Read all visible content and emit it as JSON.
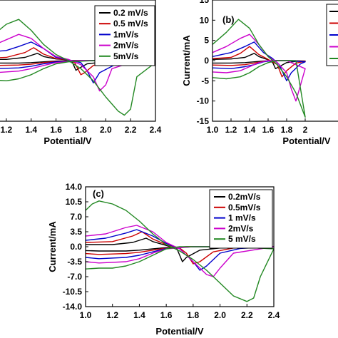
{
  "chart_data": [
    {
      "type": "line",
      "panel_label": "",
      "xlabel": "Potential/V",
      "ylabel": "",
      "xlim": [
        1.0,
        2.4
      ],
      "ylim": [
        -15,
        15
      ],
      "xticks": [
        "1.2",
        "1.4",
        "1.6",
        "1.8",
        "2.0",
        "2.2",
        "2.4"
      ],
      "yticks": [],
      "legend": {
        "position": "top-right",
        "entries": [
          "0.2 mV/s",
          "0.5 mV/s",
          "1mV/s",
          "2mV/s",
          "5mV/s"
        ]
      },
      "series": [
        {
          "name": "0.2 mV/s",
          "color": "#000000",
          "x": [
            1.0,
            1.2,
            1.35,
            1.45,
            1.5,
            1.6,
            1.7,
            1.73,
            1.76,
            1.78,
            1.85,
            2.0,
            2.4,
            2.0,
            1.72,
            1.6,
            1.5,
            1.4,
            1.3,
            1.1,
            1.0
          ],
          "y": [
            0.3,
            0.3,
            0.8,
            1.8,
            1.0,
            0.4,
            0.2,
            -0.3,
            -2.4,
            -2.0,
            -0.8,
            -0.3,
            0.0,
            0.0,
            0.0,
            -0.1,
            -0.3,
            -0.5,
            -0.6,
            -0.6,
            -0.6
          ]
        },
        {
          "name": "0.5 mV/s",
          "color": "#cc0000",
          "x": [
            1.0,
            1.2,
            1.35,
            1.42,
            1.5,
            1.6,
            1.7,
            1.75,
            1.8,
            1.83,
            1.9,
            2.0,
            2.4,
            2.0,
            1.75,
            1.6,
            1.5,
            1.4,
            1.3,
            1.1,
            1.0
          ],
          "y": [
            0.6,
            0.8,
            2.0,
            3.2,
            1.6,
            0.5,
            0.2,
            -0.5,
            -3.5,
            -3.0,
            -1.2,
            -0.4,
            0.0,
            0.0,
            0.0,
            -0.2,
            -0.5,
            -0.9,
            -1.1,
            -1.2,
            -1.1
          ]
        },
        {
          "name": "1mV/s",
          "color": "#0000cc",
          "x": [
            1.0,
            1.2,
            1.3,
            1.4,
            1.5,
            1.6,
            1.7,
            1.8,
            1.85,
            1.9,
            1.95,
            2.1,
            2.4,
            2.0,
            1.8,
            1.6,
            1.5,
            1.4,
            1.3,
            1.1,
            1.0
          ],
          "y": [
            2.0,
            2.5,
            3.5,
            4.6,
            3.0,
            0.8,
            0.2,
            -0.5,
            -2.5,
            -5.5,
            -3.0,
            -0.6,
            0.0,
            0.0,
            0.0,
            -0.3,
            -0.8,
            -1.4,
            -1.8,
            -2.0,
            -1.9
          ]
        },
        {
          "name": "2mV/s",
          "color": "#cc00cc",
          "x": [
            1.0,
            1.15,
            1.3,
            1.4,
            1.5,
            1.6,
            1.7,
            1.8,
            1.9,
            1.95,
            2.0,
            2.05,
            2.2,
            2.4,
            2.0,
            1.8,
            1.6,
            1.5,
            1.4,
            1.3,
            1.1,
            1.0
          ],
          "y": [
            3.0,
            4.5,
            6.5,
            5.5,
            3.0,
            1.0,
            0.3,
            -1.0,
            -4.0,
            -7.5,
            -6.0,
            -2.0,
            -0.5,
            0.0,
            0.0,
            0.0,
            -0.5,
            -1.2,
            -2.0,
            -2.6,
            -3.0,
            -2.8
          ]
        },
        {
          "name": "5mV/s",
          "color": "#228822",
          "x": [
            1.0,
            1.1,
            1.2,
            1.3,
            1.4,
            1.5,
            1.6,
            1.7,
            1.8,
            1.9,
            2.0,
            2.1,
            2.15,
            2.2,
            2.25,
            2.4,
            2.1,
            1.9,
            1.7,
            1.6,
            1.5,
            1.4,
            1.3,
            1.2,
            1.1,
            1.0
          ],
          "y": [
            4.0,
            6.5,
            9.0,
            10.2,
            7.5,
            4.0,
            1.5,
            0.0,
            -2.0,
            -5.0,
            -9.0,
            -12.5,
            -13.5,
            -12.0,
            -4.0,
            -0.5,
            0.0,
            0.0,
            -0.3,
            -0.8,
            -2.0,
            -3.5,
            -4.5,
            -5.0,
            -4.8,
            -4.5
          ]
        }
      ]
    },
    {
      "type": "line",
      "panel_label": "(b)",
      "xlabel": "Potential/V",
      "ylabel": "Current/mA",
      "xlim": [
        1.0,
        2.4
      ],
      "ylim": [
        -15,
        15
      ],
      "xticks": [
        "1.0",
        "1.2",
        "1.4",
        "1.6",
        "1.8",
        "2"
      ],
      "yticks": [
        "15",
        "10",
        "5",
        "0",
        "-5",
        "-10",
        "-15"
      ],
      "series": [
        {
          "name": "",
          "color": "#000000",
          "x": [
            1.0,
            1.2,
            1.35,
            1.45,
            1.5,
            1.6,
            1.65,
            1.68,
            1.72,
            1.8,
            1.9,
            2.0,
            1.8,
            1.65,
            1.55,
            1.45,
            1.35,
            1.2,
            1.0
          ],
          "y": [
            0.3,
            0.4,
            0.8,
            1.8,
            1.0,
            0.2,
            -0.5,
            -2.0,
            -1.5,
            -0.5,
            -0.2,
            -0.1,
            0.0,
            0.0,
            -0.1,
            -0.3,
            -0.5,
            -0.6,
            -0.6
          ]
        },
        {
          "name": "",
          "color": "#cc0000",
          "x": [
            1.0,
            1.2,
            1.3,
            1.4,
            1.5,
            1.6,
            1.7,
            1.75,
            1.8,
            1.9,
            2.0,
            1.8,
            1.65,
            1.55,
            1.45,
            1.35,
            1.2,
            1.0
          ],
          "y": [
            0.5,
            0.8,
            1.8,
            3.5,
            1.5,
            0.3,
            -1.0,
            -4.0,
            -2.5,
            -0.6,
            -0.2,
            0.0,
            0.0,
            -0.2,
            -0.6,
            -1.0,
            -1.2,
            -1.1
          ]
        },
        {
          "name": "",
          "color": "#0000cc",
          "x": [
            1.0,
            1.2,
            1.35,
            1.45,
            1.55,
            1.65,
            1.72,
            1.8,
            1.85,
            1.95,
            2.0,
            1.8,
            1.65,
            1.55,
            1.45,
            1.35,
            1.2,
            1.0
          ],
          "y": [
            1.0,
            2.0,
            3.5,
            4.6,
            2.0,
            0.5,
            -1.0,
            -5.0,
            -3.0,
            -0.8,
            -0.3,
            0.0,
            0.0,
            -0.3,
            -1.0,
            -1.5,
            -2.0,
            -1.8
          ]
        },
        {
          "name": "",
          "color": "#cc00cc",
          "x": [
            1.0,
            1.15,
            1.3,
            1.4,
            1.5,
            1.6,
            1.7,
            1.8,
            1.85,
            1.9,
            1.95,
            2.0,
            1.8,
            1.6,
            1.5,
            1.4,
            1.3,
            1.15,
            1.0
          ],
          "y": [
            2.0,
            3.5,
            5.5,
            6.5,
            4.0,
            1.0,
            -0.5,
            -3.0,
            -7.0,
            -10.0,
            -6.0,
            -2.0,
            0.0,
            0.0,
            -0.5,
            -1.5,
            -2.5,
            -3.0,
            -2.8
          ]
        },
        {
          "name": "",
          "color": "#228822",
          "x": [
            1.0,
            1.15,
            1.28,
            1.4,
            1.5,
            1.6,
            1.7,
            1.8,
            1.9,
            1.95,
            2.0,
            1.9,
            1.7,
            1.6,
            1.5,
            1.4,
            1.3,
            1.15,
            1.0
          ],
          "y": [
            4.0,
            7.0,
            10.2,
            8.0,
            4.0,
            1.0,
            -1.0,
            -4.0,
            -8.0,
            -11.0,
            -14.0,
            0.0,
            0.0,
            -0.5,
            -1.5,
            -3.0,
            -4.0,
            -4.5,
            -4.2
          ]
        }
      ]
    },
    {
      "type": "line",
      "panel_label": "(c)",
      "xlabel": "Potential/V",
      "ylabel": "Current/mA",
      "xlim": [
        1.0,
        2.4
      ],
      "ylim": [
        -14.0,
        14.0
      ],
      "xticks": [
        "1.0",
        "1.2",
        "1.4",
        "1.6",
        "1.8",
        "2.0",
        "2.2",
        "2.4"
      ],
      "yticks": [
        "14.0",
        "10.5",
        "7.0",
        "3.5",
        "0.0",
        "-3.5",
        "-7.0",
        "-10.5",
        "-14.0"
      ],
      "legend": {
        "position": "top-right",
        "entries": [
          "0.2mV/s",
          "0.5mV/s",
          "1 mV/s",
          "2mV/s",
          "5 mV/s"
        ]
      },
      "series": [
        {
          "name": "0.2mV/s",
          "color": "#000000",
          "x": [
            1.0,
            1.2,
            1.35,
            1.45,
            1.5,
            1.6,
            1.68,
            1.72,
            1.75,
            1.85,
            2.0,
            2.4,
            2.0,
            1.75,
            1.6,
            1.5,
            1.4,
            1.3,
            1.1,
            1.0
          ],
          "y": [
            0.5,
            0.5,
            1.0,
            2.0,
            1.2,
            0.3,
            -0.5,
            -3.5,
            -2.5,
            -0.8,
            -0.3,
            0.0,
            0.0,
            0.0,
            -0.2,
            -0.5,
            -0.8,
            -1.0,
            -1.0,
            -0.9
          ]
        },
        {
          "name": "0.5mV/s",
          "color": "#cc0000",
          "x": [
            1.0,
            1.2,
            1.35,
            1.42,
            1.5,
            1.6,
            1.7,
            1.75,
            1.8,
            1.85,
            1.95,
            2.1,
            2.4,
            2.0,
            1.75,
            1.6,
            1.5,
            1.4,
            1.3,
            1.1,
            1.0
          ],
          "y": [
            1.0,
            1.2,
            2.5,
            3.5,
            1.8,
            0.5,
            -0.3,
            -1.5,
            -4.0,
            -3.5,
            -1.2,
            -0.3,
            0.0,
            0.0,
            0.0,
            -0.3,
            -0.8,
            -1.3,
            -1.6,
            -1.8,
            -1.6
          ]
        },
        {
          "name": "1 mV/s",
          "color": "#0000cc",
          "x": [
            1.0,
            1.15,
            1.3,
            1.38,
            1.5,
            1.6,
            1.7,
            1.8,
            1.85,
            1.9,
            2.0,
            2.15,
            2.4,
            2.0,
            1.8,
            1.6,
            1.5,
            1.4,
            1.3,
            1.1,
            1.0
          ],
          "y": [
            1.5,
            2.0,
            3.2,
            4.0,
            2.5,
            0.8,
            -0.5,
            -3.5,
            -5.5,
            -4.5,
            -1.5,
            -0.4,
            0.0,
            0.0,
            0.0,
            -0.4,
            -1.2,
            -2.0,
            -2.5,
            -2.8,
            -2.5
          ]
        },
        {
          "name": "2mV/s",
          "color": "#cc00cc",
          "x": [
            1.0,
            1.15,
            1.3,
            1.38,
            1.5,
            1.6,
            1.7,
            1.8,
            1.9,
            1.95,
            2.0,
            2.1,
            2.4,
            2.0,
            1.8,
            1.6,
            1.5,
            1.4,
            1.3,
            1.1,
            1.0
          ],
          "y": [
            2.5,
            3.0,
            4.5,
            5.0,
            3.5,
            1.0,
            -0.5,
            -3.5,
            -6.5,
            -7.0,
            -5.0,
            -1.5,
            0.0,
            0.0,
            0.0,
            -0.5,
            -1.5,
            -2.8,
            -3.5,
            -3.8,
            -3.5
          ]
        },
        {
          "name": "5 mV/s",
          "color": "#228822",
          "x": [
            1.0,
            1.05,
            1.1,
            1.2,
            1.3,
            1.4,
            1.5,
            1.6,
            1.7,
            1.8,
            1.9,
            2.0,
            2.1,
            2.2,
            2.25,
            2.3,
            2.4,
            2.1,
            1.9,
            1.7,
            1.6,
            1.5,
            1.4,
            1.3,
            1.2,
            1.1,
            1.0
          ],
          "y": [
            8.5,
            10.0,
            10.7,
            10.0,
            8.5,
            6.0,
            3.0,
            0.5,
            -1.0,
            -3.0,
            -5.5,
            -8.5,
            -11.5,
            -12.8,
            -12.0,
            -7.0,
            -0.5,
            0.0,
            0.0,
            0.0,
            -0.5,
            -2.0,
            -3.5,
            -4.5,
            -5.0,
            -5.0,
            -5.2
          ]
        }
      ]
    }
  ]
}
